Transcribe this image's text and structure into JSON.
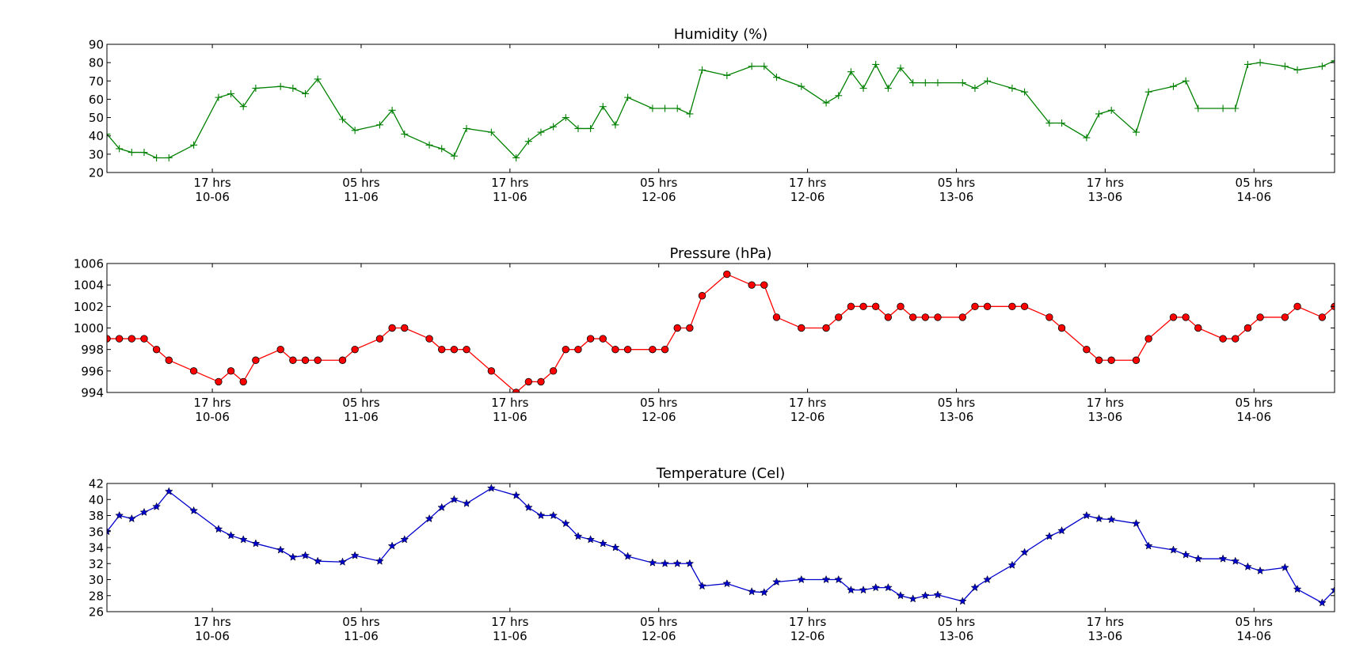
{
  "chart_data": [
    {
      "type": "line",
      "title": "Humidity (%)",
      "xlabel": "",
      "ylabel": "",
      "ylim": [
        20,
        90
      ],
      "yticks": [
        20,
        30,
        40,
        50,
        60,
        70,
        80,
        90
      ],
      "xlim": [
        0,
        99
      ],
      "x_ticks": [
        {
          "x": 8.5,
          "label": "17 hrs",
          "sub": "10-06"
        },
        {
          "x": 20.5,
          "label": "05 hrs",
          "sub": "11-06"
        },
        {
          "x": 32.5,
          "label": "17 hrs",
          "sub": "11-06"
        },
        {
          "x": 44.5,
          "label": "05 hrs",
          "sub": "12-06"
        },
        {
          "x": 56.5,
          "label": "17 hrs",
          "sub": "12-06"
        },
        {
          "x": 68.5,
          "label": "05 hrs",
          "sub": "13-06"
        },
        {
          "x": 80.5,
          "label": "17 hrs",
          "sub": "13-06"
        },
        {
          "x": 92.5,
          "label": "05 hrs",
          "sub": "14-06"
        }
      ],
      "grid": false,
      "color": "#008000",
      "marker": "plus",
      "series": [
        {
          "x": [
            0,
            1,
            2,
            3,
            4,
            5,
            7,
            9,
            10,
            11,
            12,
            14,
            15,
            16,
            17,
            19,
            20,
            22,
            23,
            24,
            26,
            27,
            28,
            29,
            31,
            33,
            34,
            35,
            36,
            37,
            38,
            39,
            40,
            41,
            42,
            44,
            45,
            46,
            47,
            48,
            50,
            52,
            53,
            54,
            56,
            58,
            59,
            60,
            61,
            62,
            63,
            64,
            65,
            66,
            67,
            69,
            70,
            71,
            73,
            74,
            76,
            77,
            79,
            80,
            81,
            83,
            84,
            86,
            87,
            88,
            90,
            91,
            92,
            93,
            95,
            96,
            98,
            99
          ],
          "y": [
            41,
            33,
            31,
            31,
            28,
            28,
            35,
            61,
            63,
            56,
            66,
            67,
            66,
            63,
            71,
            49,
            43,
            46,
            54,
            41,
            35,
            33,
            29,
            44,
            42,
            28,
            37,
            42,
            45,
            50,
            44,
            44,
            56,
            46,
            61,
            55,
            55,
            55,
            52,
            76,
            73,
            78,
            78,
            72,
            67,
            58,
            62,
            75,
            66,
            79,
            66,
            77,
            69,
            69,
            69,
            69,
            66,
            70,
            66,
            64,
            47,
            47,
            39,
            52,
            54,
            42,
            64,
            67,
            70,
            55,
            55,
            55,
            79,
            80,
            78,
            76,
            78,
            81
          ]
        }
      ]
    },
    {
      "type": "line",
      "title": "Pressure (hPa)",
      "xlabel": "",
      "ylabel": "",
      "ylim": [
        994,
        1006
      ],
      "yticks": [
        994,
        996,
        998,
        1000,
        1002,
        1004,
        1006
      ],
      "xlim": [
        0,
        99
      ],
      "x_ticks": [
        {
          "x": 8.5,
          "label": "17 hrs",
          "sub": "10-06"
        },
        {
          "x": 20.5,
          "label": "05 hrs",
          "sub": "11-06"
        },
        {
          "x": 32.5,
          "label": "17 hrs",
          "sub": "11-06"
        },
        {
          "x": 44.5,
          "label": "05 hrs",
          "sub": "12-06"
        },
        {
          "x": 56.5,
          "label": "17 hrs",
          "sub": "12-06"
        },
        {
          "x": 68.5,
          "label": "05 hrs",
          "sub": "13-06"
        },
        {
          "x": 80.5,
          "label": "17 hrs",
          "sub": "13-06"
        },
        {
          "x": 92.5,
          "label": "05 hrs",
          "sub": "14-06"
        }
      ],
      "grid": false,
      "color": "#ff0000",
      "marker": "circle",
      "series": [
        {
          "x": [
            0,
            1,
            2,
            3,
            4,
            5,
            7,
            9,
            10,
            11,
            12,
            14,
            15,
            16,
            17,
            19,
            20,
            22,
            23,
            24,
            26,
            27,
            28,
            29,
            31,
            33,
            34,
            35,
            36,
            37,
            38,
            39,
            40,
            41,
            42,
            44,
            45,
            46,
            47,
            48,
            50,
            52,
            53,
            54,
            56,
            58,
            59,
            60,
            61,
            62,
            63,
            64,
            65,
            66,
            67,
            69,
            70,
            71,
            73,
            74,
            76,
            77,
            79,
            80,
            81,
            83,
            84,
            86,
            87,
            88,
            90,
            91,
            92,
            93,
            95,
            96,
            98,
            99
          ],
          "y": [
            999,
            999,
            999,
            999,
            998,
            997,
            996,
            995,
            996,
            995,
            997,
            998,
            997,
            997,
            997,
            997,
            998,
            999,
            1000,
            1000,
            999,
            998,
            998,
            998,
            996,
            994,
            995,
            995,
            996,
            998,
            998,
            999,
            999,
            998,
            998,
            998,
            998,
            1000,
            1000,
            1003,
            1005,
            1004,
            1004,
            1001,
            1000,
            1000,
            1001,
            1002,
            1002,
            1002,
            1001,
            1002,
            1001,
            1001,
            1001,
            1001,
            1002,
            1002,
            1002,
            1002,
            1001,
            1000,
            998,
            997,
            997,
            997,
            999,
            1001,
            1001,
            1000,
            999,
            999,
            1000,
            1001,
            1001,
            1002,
            1001,
            1002
          ]
        }
      ]
    },
    {
      "type": "line",
      "title": "Temperature (Cel)",
      "xlabel": "",
      "ylabel": "",
      "ylim": [
        26,
        42
      ],
      "yticks": [
        26,
        28,
        30,
        32,
        34,
        36,
        38,
        40,
        42
      ],
      "xlim": [
        0,
        99
      ],
      "x_ticks": [
        {
          "x": 8.5,
          "label": "17 hrs",
          "sub": "10-06"
        },
        {
          "x": 20.5,
          "label": "05 hrs",
          "sub": "11-06"
        },
        {
          "x": 32.5,
          "label": "17 hrs",
          "sub": "11-06"
        },
        {
          "x": 44.5,
          "label": "05 hrs",
          "sub": "12-06"
        },
        {
          "x": 56.5,
          "label": "17 hrs",
          "sub": "12-06"
        },
        {
          "x": 68.5,
          "label": "05 hrs",
          "sub": "13-06"
        },
        {
          "x": 80.5,
          "label": "17 hrs",
          "sub": "13-06"
        },
        {
          "x": 92.5,
          "label": "05 hrs",
          "sub": "14-06"
        }
      ],
      "grid": false,
      "color": "#0000cc",
      "marker": "star",
      "series": [
        {
          "x": [
            0,
            1,
            2,
            3,
            4,
            5,
            7,
            9,
            10,
            11,
            12,
            14,
            15,
            16,
            17,
            19,
            20,
            22,
            23,
            24,
            26,
            27,
            28,
            29,
            31,
            33,
            34,
            35,
            36,
            37,
            38,
            39,
            40,
            41,
            42,
            44,
            45,
            46,
            47,
            48,
            50,
            52,
            53,
            54,
            56,
            58,
            59,
            60,
            61,
            62,
            63,
            64,
            65,
            66,
            67,
            69,
            70,
            71,
            73,
            74,
            76,
            77,
            79,
            80,
            81,
            83,
            84,
            86,
            87,
            88,
            90,
            91,
            92,
            93,
            95,
            96,
            98,
            99
          ],
          "y": [
            36,
            38,
            37.6,
            38.4,
            39.1,
            41,
            38.6,
            36.3,
            35.5,
            35,
            34.5,
            33.7,
            32.8,
            33,
            32.3,
            32.2,
            33,
            32.3,
            34.2,
            35,
            37.6,
            39,
            40,
            39.5,
            41.4,
            40.5,
            39,
            38,
            38,
            37,
            35.4,
            35,
            34.5,
            34,
            32.9,
            32.1,
            32,
            32,
            32,
            29.2,
            29.5,
            28.5,
            28.4,
            29.7,
            30,
            30,
            30,
            28.7,
            28.7,
            29,
            29,
            28,
            27.6,
            28,
            28.1,
            27.3,
            29,
            30,
            31.8,
            33.4,
            35.4,
            36.1,
            38,
            37.6,
            37.5,
            37,
            34.2,
            33.7,
            33.1,
            32.6,
            32.6,
            32.3,
            31.6,
            31.1,
            31.5,
            28.8,
            27.1,
            28.7
          ]
        }
      ]
    }
  ]
}
